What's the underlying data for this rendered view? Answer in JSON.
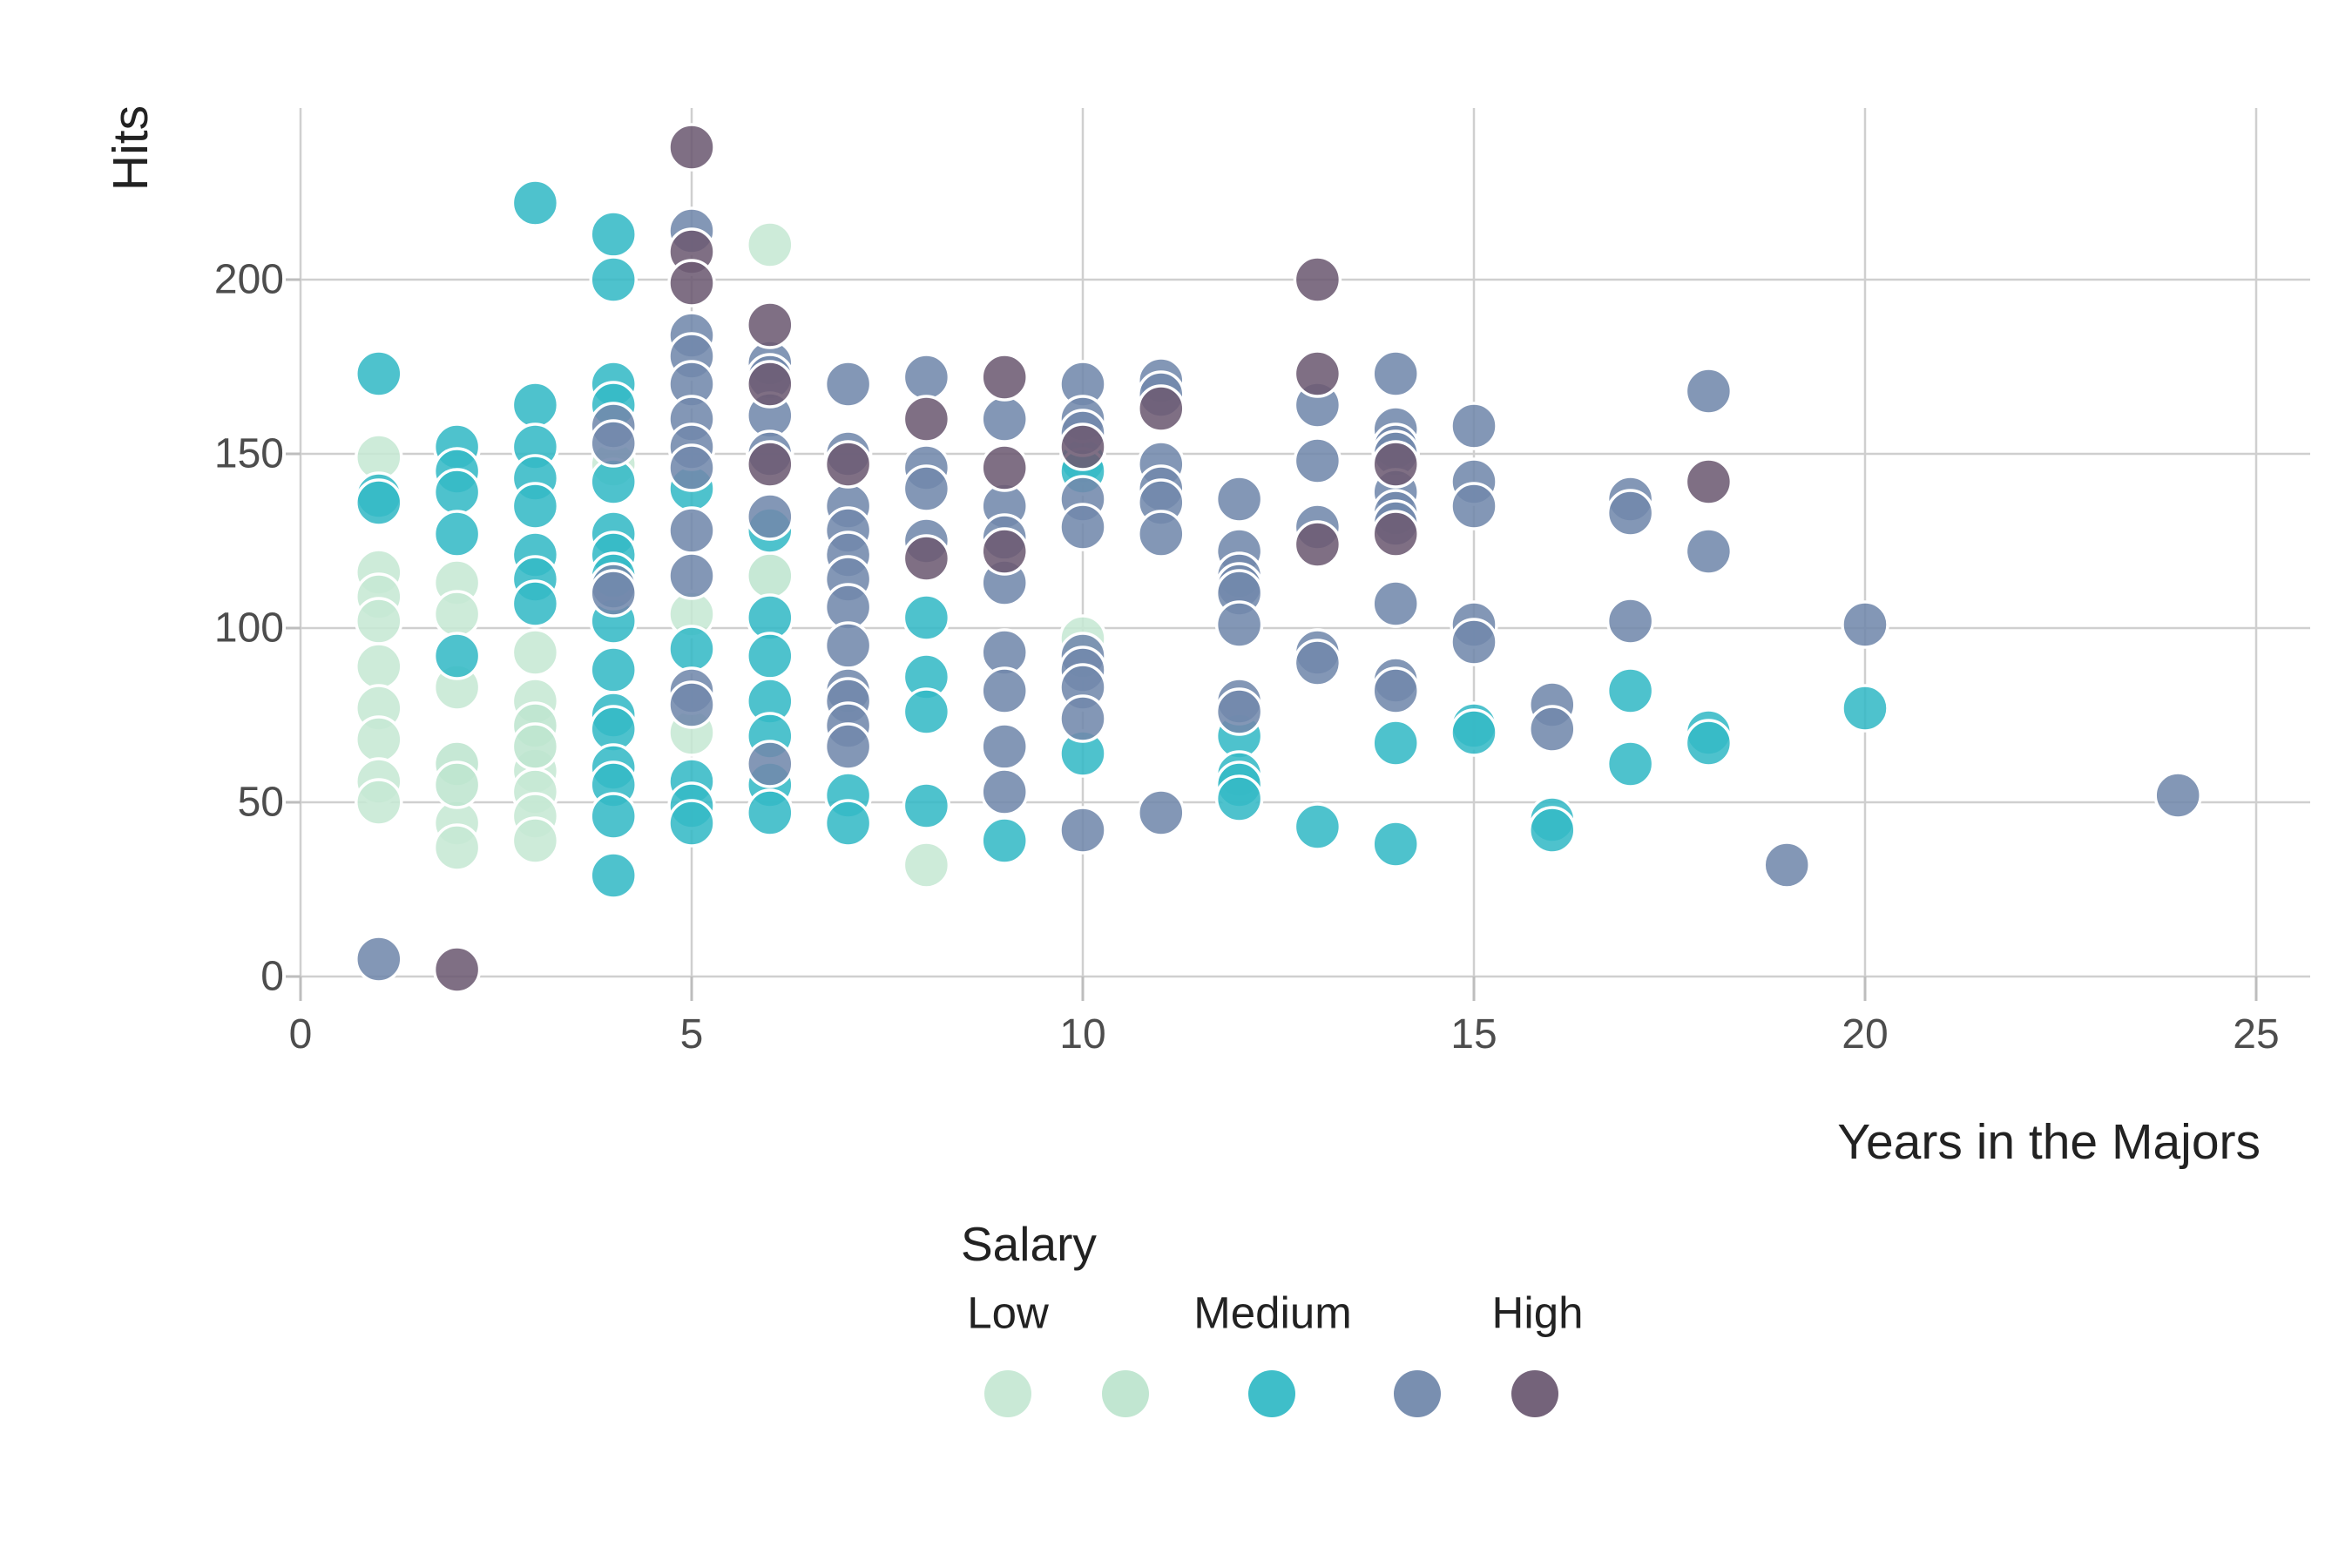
{
  "chart_data": {
    "type": "scatter",
    "title": "",
    "xlabel": "Years in the Majors",
    "ylabel": "Hits",
    "xlim": [
      0,
      25
    ],
    "ylim": [
      0,
      250
    ],
    "grid": true,
    "x_ticks": [
      0,
      5,
      10,
      15,
      20,
      25
    ],
    "y_ticks": [
      0,
      50,
      100,
      150,
      200
    ],
    "x_tick_labels": [
      "0",
      "5",
      "10",
      "15",
      "20",
      "25"
    ],
    "y_tick_labels": [
      "0",
      "50",
      "100",
      "150",
      "200"
    ],
    "legend": {
      "title": "Salary",
      "position": "bottom-center",
      "labels": [
        "Low",
        "Medium",
        "High"
      ],
      "swatch_colors": [
        "#c6e8d4",
        "#bee5cf",
        "#35bac6",
        "#7289ac",
        "#6d5b73"
      ]
    },
    "series": [
      {
        "legend_label": "Low",
        "color": "#c6e8d4",
        "points": [
          [
            1,
            149
          ],
          [
            1,
            116
          ],
          [
            1,
            109
          ],
          [
            1,
            102
          ],
          [
            1,
            89
          ],
          [
            1,
            77
          ],
          [
            1,
            68
          ],
          [
            1,
            56
          ],
          [
            1,
            50
          ],
          [
            2,
            113
          ],
          [
            2,
            104
          ],
          [
            2,
            83
          ],
          [
            2,
            44
          ],
          [
            2,
            37
          ],
          [
            3,
            93
          ],
          [
            3,
            79
          ],
          [
            3,
            59
          ],
          [
            3,
            53
          ],
          [
            3,
            46
          ],
          [
            3,
            39
          ],
          [
            4,
            147
          ],
          [
            5,
            104
          ],
          [
            5,
            70
          ],
          [
            6,
            210
          ],
          [
            8,
            32
          ],
          [
            10,
            97
          ]
        ]
      },
      {
        "legend_label": "",
        "color": "#bee5cf",
        "points": [
          [
            2,
            61
          ],
          [
            2,
            55
          ],
          [
            3,
            72
          ],
          [
            3,
            66
          ],
          [
            6,
            115
          ]
        ]
      },
      {
        "legend_label": "Medium",
        "color": "#35bac6",
        "points": [
          [
            1,
            173
          ],
          [
            1,
            138
          ],
          [
            1,
            136
          ],
          [
            2,
            152
          ],
          [
            2,
            145
          ],
          [
            2,
            139
          ],
          [
            2,
            127
          ],
          [
            2,
            92
          ],
          [
            3,
            222
          ],
          [
            3,
            164
          ],
          [
            3,
            152
          ],
          [
            3,
            143
          ],
          [
            3,
            135
          ],
          [
            3,
            121
          ],
          [
            3,
            114
          ],
          [
            3,
            107
          ],
          [
            4,
            213
          ],
          [
            4,
            200
          ],
          [
            4,
            170
          ],
          [
            4,
            164
          ],
          [
            4,
            142
          ],
          [
            4,
            127
          ],
          [
            4,
            121
          ],
          [
            4,
            115
          ],
          [
            4,
            102
          ],
          [
            4,
            88
          ],
          [
            4,
            75
          ],
          [
            4,
            71
          ],
          [
            4,
            60
          ],
          [
            4,
            55
          ],
          [
            4,
            46
          ],
          [
            4,
            29
          ],
          [
            5,
            140
          ],
          [
            5,
            94
          ],
          [
            5,
            56
          ],
          [
            5,
            49
          ],
          [
            5,
            44
          ],
          [
            6,
            128
          ],
          [
            6,
            103
          ],
          [
            6,
            92
          ],
          [
            6,
            79
          ],
          [
            6,
            69
          ],
          [
            6,
            55
          ],
          [
            6,
            47
          ],
          [
            7,
            52
          ],
          [
            7,
            44
          ],
          [
            8,
            103
          ],
          [
            8,
            86
          ],
          [
            8,
            76
          ],
          [
            8,
            49
          ],
          [
            9,
            39
          ],
          [
            10,
            148
          ],
          [
            10,
            145
          ],
          [
            10,
            64
          ],
          [
            12,
            69
          ],
          [
            12,
            58
          ],
          [
            12,
            55
          ],
          [
            12,
            51
          ],
          [
            13,
            43
          ],
          [
            14,
            67
          ],
          [
            14,
            38
          ],
          [
            15,
            72
          ],
          [
            15,
            70
          ],
          [
            16,
            45
          ],
          [
            16,
            42
          ],
          [
            17,
            82
          ],
          [
            17,
            61
          ],
          [
            18,
            70
          ],
          [
            18,
            67
          ],
          [
            20,
            77
          ]
        ]
      },
      {
        "legend_label": "",
        "color": "#7289ac",
        "points": [
          [
            1,
            5
          ],
          [
            4,
            158
          ],
          [
            4,
            153
          ],
          [
            4,
            112
          ],
          [
            4,
            110
          ],
          [
            5,
            214
          ],
          [
            5,
            184
          ],
          [
            5,
            178
          ],
          [
            5,
            170
          ],
          [
            5,
            160
          ],
          [
            5,
            152
          ],
          [
            5,
            146
          ],
          [
            5,
            128
          ],
          [
            5,
            115
          ],
          [
            5,
            82
          ],
          [
            5,
            78
          ],
          [
            6,
            176
          ],
          [
            6,
            172
          ],
          [
            6,
            161
          ],
          [
            6,
            150
          ],
          [
            6,
            132
          ],
          [
            6,
            61
          ],
          [
            7,
            170
          ],
          [
            7,
            150
          ],
          [
            7,
            135
          ],
          [
            7,
            128
          ],
          [
            7,
            121
          ],
          [
            7,
            114
          ],
          [
            7,
            106
          ],
          [
            7,
            95
          ],
          [
            7,
            82
          ],
          [
            7,
            79
          ],
          [
            7,
            72
          ],
          [
            7,
            66
          ],
          [
            8,
            172
          ],
          [
            8,
            146
          ],
          [
            8,
            140
          ],
          [
            8,
            125
          ],
          [
            9,
            160
          ],
          [
            9,
            135
          ],
          [
            9,
            126
          ],
          [
            9,
            113
          ],
          [
            9,
            93
          ],
          [
            9,
            82
          ],
          [
            9,
            66
          ],
          [
            9,
            53
          ],
          [
            10,
            170
          ],
          [
            10,
            160
          ],
          [
            10,
            156
          ],
          [
            10,
            137
          ],
          [
            10,
            129
          ],
          [
            10,
            92
          ],
          [
            10,
            88
          ],
          [
            10,
            83
          ],
          [
            10,
            74
          ],
          [
            10,
            42
          ],
          [
            11,
            171
          ],
          [
            11,
            167
          ],
          [
            11,
            147
          ],
          [
            11,
            140
          ],
          [
            11,
            136
          ],
          [
            11,
            127
          ],
          [
            11,
            47
          ],
          [
            12,
            137
          ],
          [
            12,
            122
          ],
          [
            12,
            115
          ],
          [
            12,
            112
          ],
          [
            12,
            110
          ],
          [
            12,
            101
          ],
          [
            12,
            79
          ],
          [
            12,
            76
          ],
          [
            13,
            164
          ],
          [
            13,
            148
          ],
          [
            13,
            129
          ],
          [
            13,
            93
          ],
          [
            13,
            90
          ],
          [
            14,
            173
          ],
          [
            14,
            157
          ],
          [
            14,
            152
          ],
          [
            14,
            150
          ],
          [
            14,
            139
          ],
          [
            14,
            133
          ],
          [
            14,
            130
          ],
          [
            14,
            107
          ],
          [
            14,
            85
          ],
          [
            14,
            82
          ],
          [
            15,
            158
          ],
          [
            15,
            142
          ],
          [
            15,
            135
          ],
          [
            15,
            101
          ],
          [
            15,
            96
          ],
          [
            16,
            78
          ],
          [
            16,
            71
          ],
          [
            17,
            137
          ],
          [
            17,
            133
          ],
          [
            17,
            102
          ],
          [
            18,
            168
          ],
          [
            18,
            122
          ],
          [
            19,
            32
          ],
          [
            20,
            101
          ],
          [
            24,
            52
          ]
        ]
      },
      {
        "legend_label": "High",
        "color": "#6d5b73",
        "points": [
          [
            2,
            2
          ],
          [
            5,
            238
          ],
          [
            5,
            208
          ],
          [
            5,
            199
          ],
          [
            6,
            187
          ],
          [
            6,
            170
          ],
          [
            6,
            147
          ],
          [
            7,
            147
          ],
          [
            8,
            160
          ],
          [
            8,
            120
          ],
          [
            9,
            172
          ],
          [
            9,
            146
          ],
          [
            9,
            122
          ],
          [
            10,
            152
          ],
          [
            11,
            163
          ],
          [
            13,
            200
          ],
          [
            13,
            173
          ],
          [
            13,
            124
          ],
          [
            14,
            147
          ],
          [
            14,
            127
          ],
          [
            18,
            142
          ]
        ]
      }
    ]
  }
}
